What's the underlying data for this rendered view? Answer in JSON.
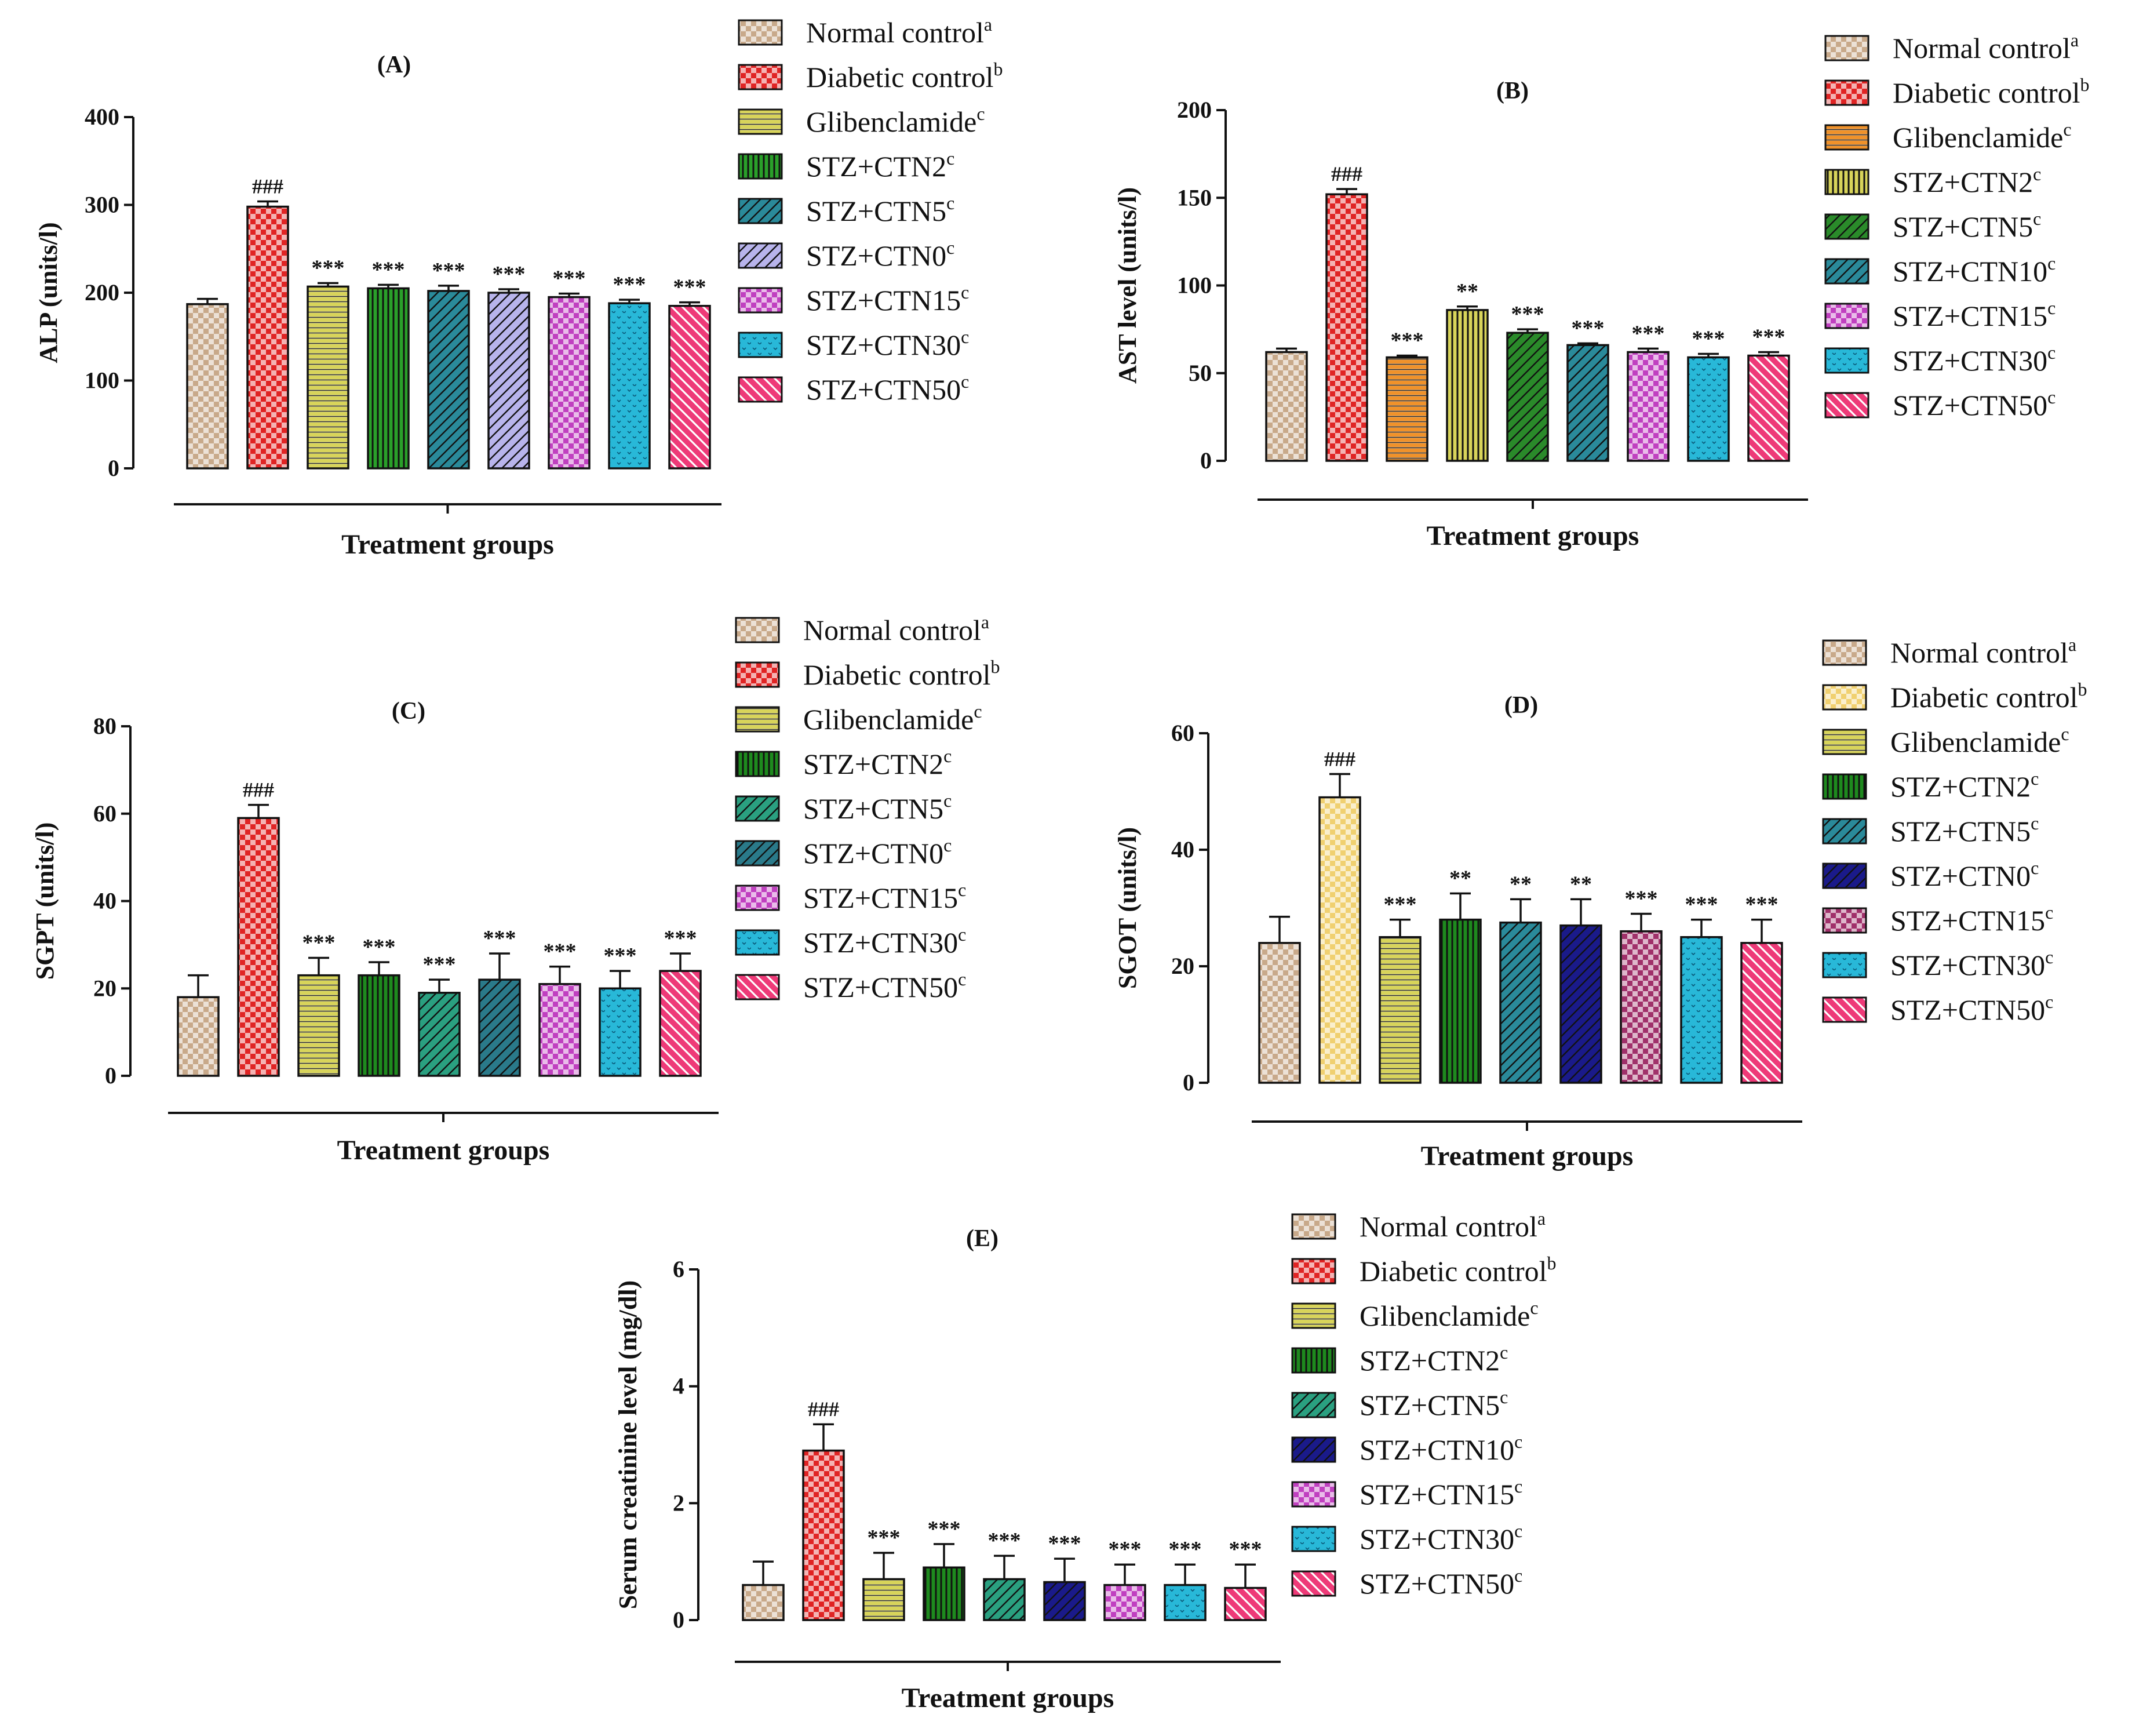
{
  "figure": {
    "xlabel": "Treatment groups"
  },
  "chart_data": [
    {
      "id": "A",
      "type": "bar",
      "title": "(A)",
      "ylabel": "ALP (units/l)",
      "xlabel": "Treatment groups",
      "ylim": [
        0,
        400
      ],
      "yticks": [
        0,
        100,
        200,
        300,
        400
      ],
      "categories": [
        "Normal control",
        "Diabetic control",
        "Glibenclamide",
        "STZ+CTN2",
        "STZ+CTN5",
        "STZ+CTN0",
        "STZ+CTN15",
        "STZ+CTN30",
        "STZ+CTN50"
      ],
      "legend_sup": [
        "a",
        "b",
        "c",
        "c",
        "c",
        "c",
        "c",
        "c",
        "c"
      ],
      "values": [
        187,
        298,
        207,
        205,
        202,
        200,
        195,
        188,
        185
      ],
      "errors": [
        6,
        6,
        4,
        4,
        6,
        4,
        4,
        4,
        4
      ],
      "significance": [
        "",
        "###",
        "***",
        "***",
        "***",
        "***",
        "***",
        "***",
        "***"
      ],
      "colors": [
        "#c8a98a",
        "#e02424",
        "#d8d45a",
        "#2aa02a",
        "#2a8a9a",
        "#b8b4ec",
        "#c040c0",
        "#28b8d8",
        "#ee3a78"
      ],
      "patterns": [
        "check",
        "check",
        "hlines",
        "vlines",
        "diag",
        "diag",
        "check",
        "dots",
        "diag2"
      ]
    },
    {
      "id": "B",
      "type": "bar",
      "title": "(B)",
      "ylabel": "AST level (units/l)",
      "xlabel": "Treatment groups",
      "ylim": [
        0,
        200
      ],
      "yticks": [
        0,
        50,
        100,
        150,
        200
      ],
      "categories": [
        "Normal control",
        "Diabetic control",
        "Glibenclamide",
        "STZ+CTN2",
        "STZ+CTN5",
        "STZ+CTN10",
        "STZ+CTN15",
        "STZ+CTN30",
        "STZ+CTN50"
      ],
      "legend_sup": [
        "a",
        "b",
        "c",
        "c",
        "c",
        "c",
        "c",
        "c",
        "c"
      ],
      "values": [
        62,
        152,
        59,
        86,
        73,
        66,
        62,
        59,
        60
      ],
      "errors": [
        2,
        3,
        1,
        2,
        2,
        1,
        2,
        2,
        2
      ],
      "significance": [
        "",
        "###",
        "***",
        "**",
        "***",
        "***",
        "***",
        "***",
        "***"
      ],
      "colors": [
        "#c8a98a",
        "#e02424",
        "#f0922a",
        "#d8d45a",
        "#2a8a2a",
        "#2a8a9a",
        "#c040c0",
        "#28b8d8",
        "#ee3a78"
      ],
      "patterns": [
        "check",
        "check",
        "hlines",
        "vlines",
        "diag",
        "diag",
        "check",
        "dots",
        "diag2"
      ]
    },
    {
      "id": "C",
      "type": "bar",
      "title": "(C)",
      "ylabel": "SGPT (units/l)",
      "xlabel": "Treatment groups",
      "ylim": [
        0,
        80
      ],
      "yticks": [
        0,
        20,
        40,
        60,
        80
      ],
      "categories": [
        "Normal control",
        "Diabetic control",
        "Glibenclamide",
        "STZ+CTN2",
        "STZ+CTN5",
        "STZ+CTN0",
        "STZ+CTN15",
        "STZ+CTN30",
        "STZ+CTN50"
      ],
      "legend_sup": [
        "a",
        "b",
        "c",
        "c",
        "c",
        "c",
        "c",
        "c",
        "c"
      ],
      "values": [
        18,
        59,
        23,
        23,
        19,
        22,
        21,
        20,
        24
      ],
      "errors": [
        5,
        3,
        4,
        3,
        3,
        6,
        4,
        4,
        4
      ],
      "significance": [
        "",
        "###",
        "***",
        "***",
        "***",
        "***",
        "***",
        "***",
        "***"
      ],
      "colors": [
        "#c8a98a",
        "#e02424",
        "#d8d45a",
        "#1e8a1e",
        "#2aa080",
        "#2a7a8a",
        "#c040c0",
        "#28b8d8",
        "#ee3a78"
      ],
      "patterns": [
        "check",
        "check",
        "hlines",
        "vlines",
        "diag",
        "diag",
        "check",
        "dots",
        "diag2"
      ]
    },
    {
      "id": "D",
      "type": "bar",
      "title": "(D)",
      "ylabel": "SGOT (units/l)",
      "xlabel": "Treatment groups",
      "ylim": [
        0,
        60
      ],
      "yticks": [
        0,
        20,
        40,
        60
      ],
      "categories": [
        "Normal control",
        "Diabetic control",
        "Glibenclamide",
        "STZ+CTN2",
        "STZ+CTN5",
        "STZ+CTN0",
        "STZ+CTN15",
        "STZ+CTN30",
        "STZ+CTN50"
      ],
      "legend_sup": [
        "a",
        "b",
        "c",
        "c",
        "c",
        "c",
        "c",
        "c",
        "c"
      ],
      "values": [
        24,
        49,
        25,
        28,
        27.5,
        27,
        26,
        25,
        24
      ],
      "errors": [
        4.5,
        4,
        3,
        4.5,
        4,
        4.5,
        3,
        3,
        4
      ],
      "significance": [
        "",
        "###",
        "***",
        "**",
        "**",
        "**",
        "***",
        "***",
        "***"
      ],
      "colors": [
        "#c8a98a",
        "#f0d070",
        "#d8d45a",
        "#1e8a1e",
        "#2a8a9a",
        "#1a1a8a",
        "#a0306a",
        "#28b8d8",
        "#ee3a78"
      ],
      "patterns": [
        "check",
        "check",
        "hlines",
        "vlines",
        "diag",
        "diag",
        "check",
        "dots",
        "diag2"
      ]
    },
    {
      "id": "E",
      "type": "bar",
      "title": "(E)",
      "ylabel": "Serum creatinine level (mg/dl)",
      "xlabel": "Treatment groups",
      "ylim": [
        0,
        6
      ],
      "yticks": [
        0,
        2,
        4,
        6
      ],
      "categories": [
        "Normal control",
        "Diabetic control",
        "Glibenclamide",
        "STZ+CTN2",
        "STZ+CTN5",
        "STZ+CTN10",
        "STZ+CTN15",
        "STZ+CTN30",
        "STZ+CTN50"
      ],
      "legend_sup": [
        "a",
        "b",
        "c",
        "c",
        "c",
        "c",
        "c",
        "c",
        "c"
      ],
      "values": [
        0.6,
        2.9,
        0.7,
        0.9,
        0.7,
        0.65,
        0.6,
        0.6,
        0.55
      ],
      "errors": [
        0.4,
        0.45,
        0.45,
        0.4,
        0.4,
        0.4,
        0.35,
        0.35,
        0.4
      ],
      "significance": [
        "",
        "###",
        "***",
        "***",
        "***",
        "***",
        "***",
        "***",
        "***"
      ],
      "colors": [
        "#c8a98a",
        "#e02424",
        "#d8d45a",
        "#1e8a1e",
        "#2aa080",
        "#1a1a8a",
        "#c040c0",
        "#28b8d8",
        "#ee3a78"
      ],
      "patterns": [
        "check",
        "check",
        "hlines",
        "vlines",
        "diag",
        "diag",
        "check",
        "dots",
        "diag2"
      ]
    }
  ]
}
